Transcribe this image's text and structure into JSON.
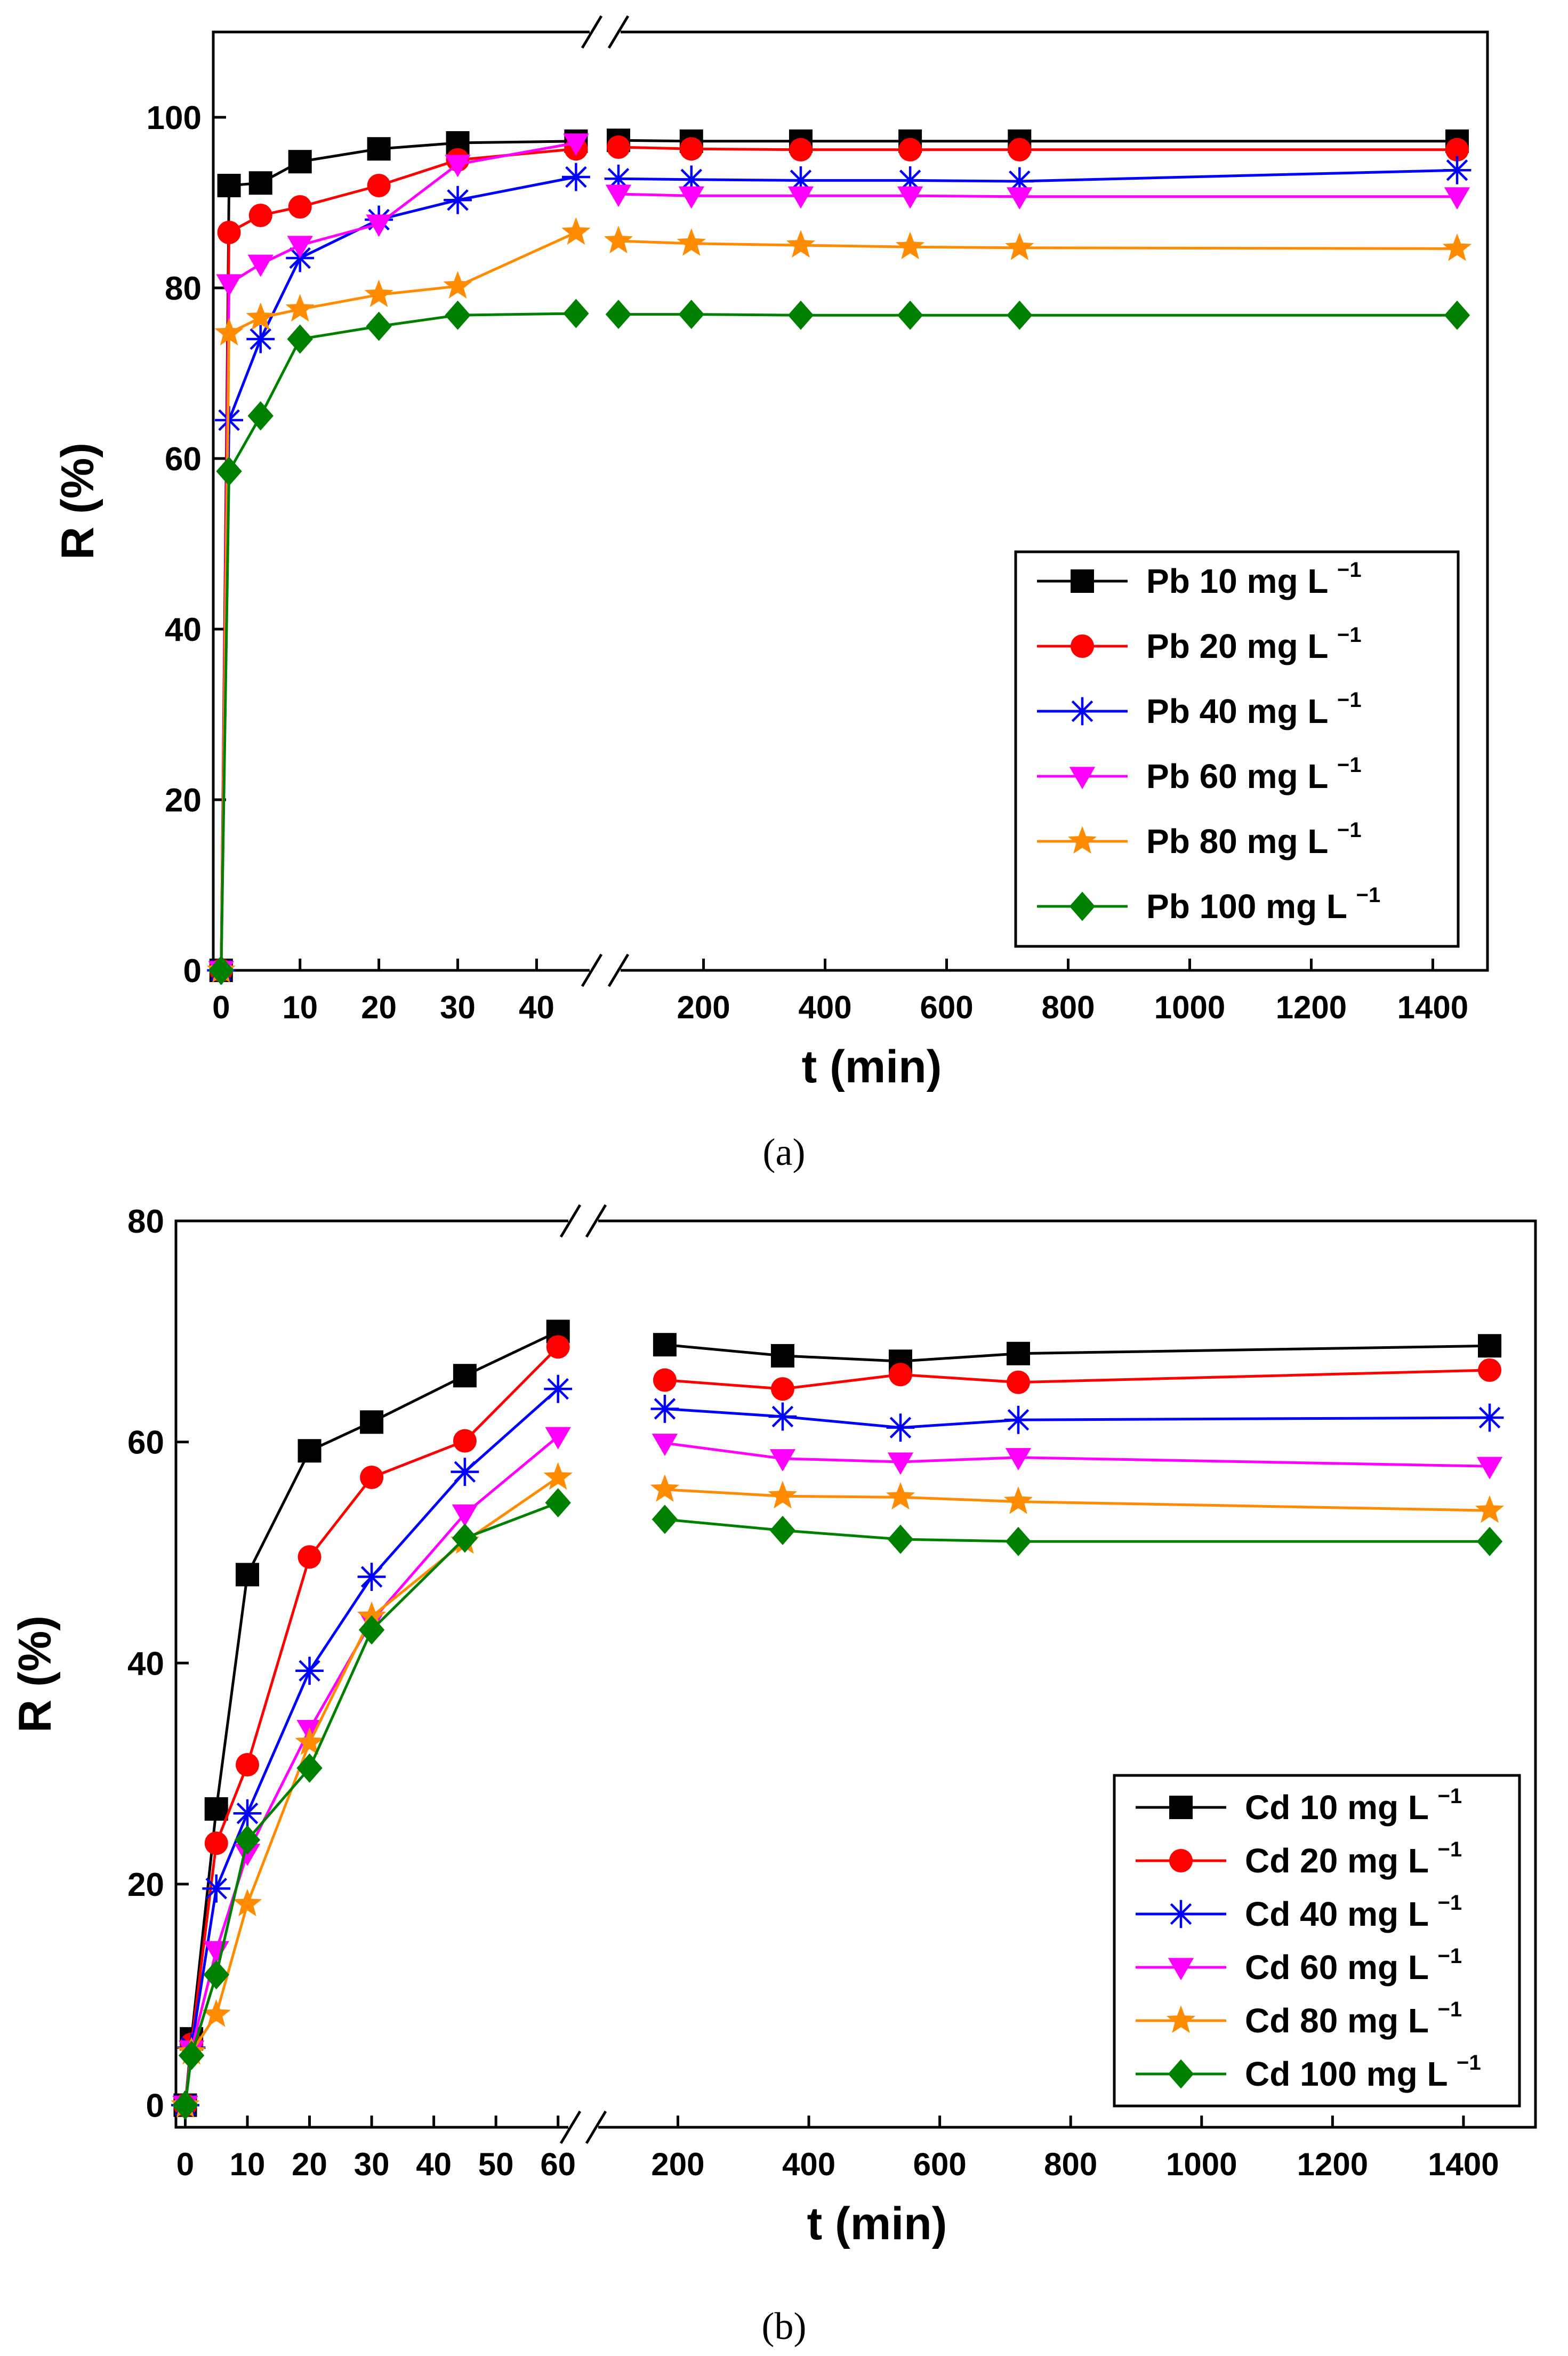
{
  "chart_data": [
    {
      "type": "line",
      "xlabel": "t (min)",
      "ylabel": "R (%)",
      "ylim": [
        0,
        110
      ],
      "yticks": [
        0,
        20,
        40,
        60,
        80,
        100
      ],
      "x_break": 45,
      "left_xlim": [
        -1,
        47
      ],
      "left_xticks": [
        0,
        10,
        20,
        30,
        40
      ],
      "right_xlim": [
        60,
        1490
      ],
      "right_xticks": [
        200,
        400,
        600,
        800,
        1000,
        1200,
        1400
      ],
      "legend_position": "bottom-right",
      "series": [
        {
          "name": "Pb 10 mg L",
          "color": "#000000",
          "marker": "square",
          "x": [
            0,
            1,
            5,
            10,
            20,
            30,
            45,
            60,
            180,
            360,
            540,
            720,
            1440
          ],
          "y": [
            0,
            92,
            92.3,
            94.8,
            96.3,
            97,
            97.2,
            97.3,
            97.2,
            97.2,
            97.2,
            97.2,
            97.2
          ]
        },
        {
          "name": "Pb 20 mg L",
          "color": "#ff0000",
          "marker": "circle",
          "x": [
            0,
            1,
            5,
            10,
            20,
            30,
            45,
            60,
            180,
            360,
            540,
            720,
            1440
          ],
          "y": [
            0,
            86.5,
            88.5,
            89.5,
            92,
            95,
            96.3,
            96.5,
            96.3,
            96.2,
            96.2,
            96.2,
            96.2
          ]
        },
        {
          "name": "Pb 40 mg L",
          "color": "#0000ff",
          "marker": "asterisk",
          "x": [
            0,
            1,
            5,
            10,
            20,
            30,
            45,
            60,
            180,
            360,
            540,
            720,
            1440
          ],
          "y": [
            0,
            64.5,
            74,
            83.5,
            88,
            90.3,
            93,
            92.8,
            92.7,
            92.6,
            92.6,
            92.5,
            93.8
          ]
        },
        {
          "name": "Pb 60 mg L",
          "color": "#ff00ff",
          "marker": "triangle-down",
          "x": [
            0,
            1,
            5,
            10,
            20,
            30,
            45,
            60,
            180,
            360,
            540,
            720,
            1440
          ],
          "y": [
            0,
            80.5,
            82.8,
            85,
            87.5,
            94.5,
            97,
            91,
            90.8,
            90.8,
            90.8,
            90.7,
            90.7
          ]
        },
        {
          "name": "Pb 80 mg L",
          "color": "#ff8c00",
          "marker": "star",
          "x": [
            0,
            1,
            5,
            10,
            20,
            30,
            45,
            60,
            180,
            360,
            540,
            720,
            1440
          ],
          "y": [
            0,
            74.7,
            76.5,
            77.5,
            79.2,
            80.2,
            86.5,
            85.5,
            85.2,
            85,
            84.8,
            84.7,
            84.6
          ]
        },
        {
          "name": "Pb 100 mg L",
          "color": "#008000",
          "marker": "diamond",
          "x": [
            0,
            1,
            5,
            10,
            20,
            30,
            45,
            60,
            180,
            360,
            540,
            720,
            1440
          ],
          "y": [
            0,
            58.5,
            65,
            74,
            75.5,
            76.8,
            77,
            76.9,
            76.9,
            76.8,
            76.8,
            76.8,
            76.8
          ]
        }
      ],
      "caption": "(a)"
    },
    {
      "type": "line",
      "xlabel": "t (min)",
      "ylabel": "R (%)",
      "ylim": [
        -2,
        80
      ],
      "yticks": [
        0,
        20,
        40,
        60,
        80
      ],
      "x_break": 60,
      "left_xlim": [
        -1.5,
        62
      ],
      "left_xticks": [
        0,
        10,
        20,
        30,
        40,
        50,
        60
      ],
      "right_xlim": [
        75,
        1510
      ],
      "right_xticks": [
        200,
        400,
        600,
        800,
        1000,
        1200,
        1400
      ],
      "legend_position": "bottom-right",
      "series": [
        {
          "name": "Cd 10 mg L",
          "color": "#000000",
          "marker": "square",
          "x": [
            0,
            1,
            5,
            10,
            20,
            30,
            45,
            60,
            180,
            360,
            540,
            720,
            1440
          ],
          "y": [
            0,
            6,
            26.8,
            48,
            59.2,
            61.8,
            66,
            70,
            68.8,
            67.8,
            67.3,
            68,
            68.7
          ]
        },
        {
          "name": "Cd 20 mg L",
          "color": "#ff0000",
          "marker": "circle",
          "x": [
            0,
            1,
            5,
            10,
            20,
            30,
            45,
            60,
            180,
            360,
            540,
            720,
            1440
          ],
          "y": [
            0,
            5.5,
            23.7,
            30.8,
            49.6,
            56.8,
            60.1,
            68.6,
            65.6,
            64.8,
            66.1,
            65.4,
            66.5
          ]
        },
        {
          "name": "Cd 40 mg L",
          "color": "#0000ff",
          "marker": "asterisk",
          "x": [
            0,
            1,
            5,
            10,
            20,
            30,
            45,
            60,
            180,
            360,
            540,
            720,
            1440
          ],
          "y": [
            0,
            5.2,
            19.6,
            26.4,
            39.3,
            47.8,
            57.3,
            64.8,
            63,
            62.3,
            61.3,
            62,
            62.2
          ]
        },
        {
          "name": "Cd 60 mg L",
          "color": "#ff00ff",
          "marker": "triangle-down",
          "x": [
            0,
            1,
            5,
            10,
            20,
            30,
            45,
            60,
            180,
            360,
            540,
            720,
            1440
          ],
          "y": [
            0,
            5,
            14,
            22.8,
            34,
            43.8,
            53.5,
            60.5,
            59.9,
            58.5,
            58.2,
            58.6,
            57.8
          ]
        },
        {
          "name": "Cd 80 mg L",
          "color": "#ff8c00",
          "marker": "star",
          "x": [
            0,
            1,
            5,
            10,
            20,
            30,
            45,
            60,
            180,
            360,
            540,
            720,
            1440
          ],
          "y": [
            0,
            4.8,
            8.2,
            18.2,
            32.8,
            44.2,
            51,
            56.8,
            55.7,
            55.1,
            55,
            54.6,
            53.8
          ]
        },
        {
          "name": "Cd 100 mg L",
          "color": "#008000",
          "marker": "diamond",
          "x": [
            0,
            1,
            5,
            10,
            20,
            30,
            45,
            60,
            180,
            360,
            540,
            720,
            1440
          ],
          "y": [
            0,
            4.5,
            11.8,
            24,
            30.5,
            43,
            51.3,
            54.5,
            53,
            52,
            51.2,
            51,
            51
          ]
        }
      ],
      "caption": "(b)"
    }
  ]
}
